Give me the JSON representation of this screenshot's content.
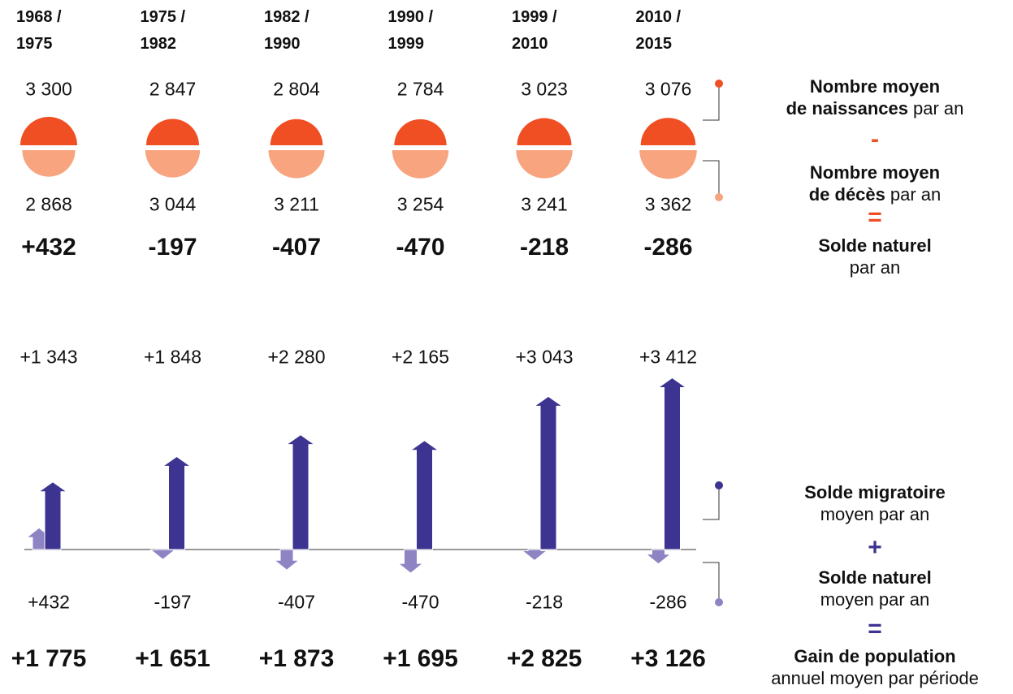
{
  "chart_data": {
    "type": "bar",
    "categories": [
      "1968 / 1975",
      "1975 / 1982",
      "1982 / 1990",
      "1990 / 1999",
      "1999 / 2010",
      "2010 / 2015"
    ],
    "births": {
      "values": [
        3300,
        2847,
        2804,
        2784,
        3023,
        3076
      ],
      "value_labels": [
        "3 300",
        "2 847",
        "2 804",
        "2 784",
        "3 023",
        "3 076"
      ],
      "color": "#f04e23"
    },
    "deaths": {
      "values": [
        2868,
        3044,
        3211,
        3254,
        3241,
        3362
      ],
      "value_labels": [
        "2 868",
        "3 044",
        "3 211",
        "3 254",
        "3 241",
        "3 362"
      ],
      "color": "#f7a47f"
    },
    "natural": {
      "values": [
        432,
        -197,
        -407,
        -470,
        -218,
        -286
      ],
      "value_labels": [
        "+432",
        "-197",
        "-407",
        "-470",
        "-218",
        "-286"
      ],
      "color": "#8e84c4"
    },
    "migration": {
      "values": [
        1343,
        1848,
        2280,
        2165,
        3043,
        3412
      ],
      "value_labels": [
        "+1 343",
        "+1 848",
        "+2 280",
        "+2 165",
        "+3 043",
        "+3 412"
      ],
      "color": "#3d3391"
    },
    "gain": {
      "values": [
        1775,
        1651,
        1873,
        1695,
        2825,
        3126
      ],
      "value_labels": [
        "+1 775",
        "+1 651",
        "+1 873",
        "+1 695",
        "+2 825",
        "+3 126"
      ]
    },
    "legend": [
      {
        "bold": [
          "Nombre moyen",
          "de naissances"
        ],
        "text": "par an",
        "inline": true
      },
      {
        "bold": [
          "Nombre moyen",
          "de décès"
        ],
        "text": "par an",
        "inline": true
      },
      {
        "bold": [
          "Solde naturel"
        ],
        "text": "par an",
        "inline": false
      },
      {
        "bold": [
          "Solde migratoire"
        ],
        "text": "moyen par an",
        "inline": false
      },
      {
        "bold": [
          "Solde naturel"
        ],
        "text": "moyen par an",
        "inline": false
      },
      {
        "bold": [
          "Gain de population"
        ],
        "text": "annuel moyen par période",
        "inline": false
      }
    ],
    "operators": [
      {
        "symbol": "-",
        "color": "#f04e23"
      },
      {
        "symbol": "=",
        "color": "#f04e23"
      },
      {
        "symbol": "+",
        "color": "#3d3391"
      },
      {
        "symbol": "=",
        "color": "#3d3391"
      }
    ]
  }
}
